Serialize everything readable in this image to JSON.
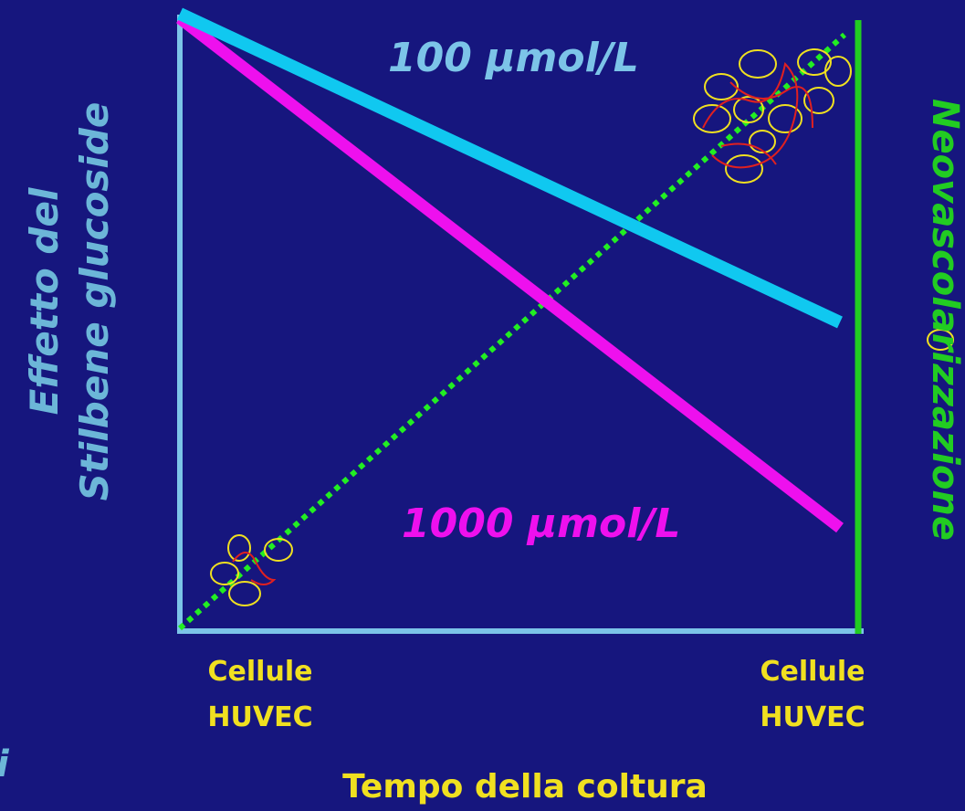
{
  "y_axis_label": {
    "line1": "Effetto del",
    "line2": "Stilbene glucoside"
  },
  "y2_axis_label": "Neovascolarizzazione",
  "curves": [
    {
      "label": "100 µmol/L"
    },
    {
      "label": "1000 µmol/L"
    }
  ],
  "x_axis": {
    "start": {
      "line1": "Cellule",
      "line2": "HUVEC"
    },
    "end": {
      "line1": "Cellule",
      "line2": "HUVEC"
    },
    "title": "Tempo della coltura"
  },
  "corner_text": "i"
}
